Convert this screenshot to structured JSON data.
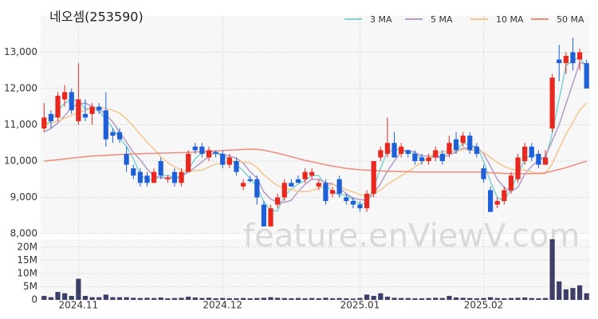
{
  "chart_data": {
    "type": "candlestick",
    "title": "네오셈(253590)",
    "categories": [
      null,
      null,
      null,
      null,
      null,
      "2024.11",
      null,
      null,
      null,
      null,
      null,
      null,
      null,
      null,
      null,
      null,
      null,
      null,
      null,
      null,
      null,
      null,
      null,
      null,
      null,
      null,
      "2024.12",
      null,
      null,
      null,
      null,
      null,
      null,
      null,
      null,
      null,
      null,
      null,
      null,
      null,
      null,
      null,
      null,
      null,
      null,
      null,
      "2025.01",
      null,
      null,
      null,
      null,
      null,
      null,
      null,
      null,
      null,
      null,
      null,
      null,
      null,
      null,
      null,
      null,
      null,
      "2025.02",
      null,
      null,
      null,
      null,
      null,
      null,
      null,
      null,
      null,
      null,
      null,
      null,
      null,
      null,
      null
    ],
    "open": [
      10900,
      11300,
      11200,
      11700,
      11900,
      11100,
      11300,
      11300,
      11500,
      11400,
      10800,
      10800,
      10200,
      9800,
      9700,
      9600,
      9400,
      10000,
      9500,
      9700,
      9400,
      9700,
      10400,
      10400,
      10100,
      10250,
      10200,
      9900,
      10000,
      9300,
      9500,
      9500,
      8800,
      8200,
      8800,
      9000,
      9400,
      9500,
      9500,
      9600,
      9300,
      9400,
      9100,
      9500,
      9000,
      8900,
      8800,
      8700,
      9100,
      10100,
      10200,
      10500,
      10200,
      10300,
      10200,
      10100,
      10000,
      10100,
      10200,
      10200,
      10600,
      10500,
      10700,
      10400,
      9800,
      9200,
      8800,
      8900,
      9200,
      9500,
      10000,
      10400,
      10200,
      9900,
      10900,
      12800,
      12700,
      13000,
      12800,
      12700
    ],
    "high": [
      11600,
      11400,
      11900,
      12100,
      12000,
      12700,
      11700,
      11600,
      11600,
      11900,
      10900,
      10900,
      10400,
      9900,
      9800,
      9700,
      9800,
      10100,
      9600,
      9800,
      9800,
      10300,
      10500,
      10500,
      10400,
      10300,
      10300,
      10200,
      10100,
      9500,
      9600,
      9600,
      8900,
      8800,
      9100,
      9500,
      9500,
      9600,
      9800,
      9800,
      9500,
      9500,
      9300,
      9600,
      9100,
      9000,
      8900,
      9200,
      10000,
      10400,
      11200,
      10800,
      10500,
      10300,
      10300,
      10200,
      10200,
      10400,
      10300,
      10700,
      10800,
      10800,
      10800,
      10500,
      9900,
      9300,
      9000,
      9300,
      9700,
      10200,
      10500,
      10500,
      10300,
      10300,
      12400,
      13200,
      13000,
      13400,
      13100,
      12800
    ],
    "low": [
      10800,
      10900,
      11100,
      11500,
      11300,
      11000,
      11100,
      11000,
      11300,
      10400,
      10500,
      10500,
      9700,
      9500,
      9300,
      9300,
      9400,
      9500,
      9400,
      9300,
      9300,
      9700,
      10200,
      10100,
      10000,
      10100,
      9800,
      9800,
      9600,
      9200,
      9400,
      8800,
      8200,
      8200,
      8700,
      8900,
      9300,
      9400,
      9400,
      9500,
      9200,
      8800,
      9000,
      9000,
      8800,
      8700,
      8600,
      8600,
      9000,
      10000,
      10100,
      10100,
      10100,
      10100,
      9900,
      9900,
      9900,
      10000,
      9900,
      10100,
      10200,
      10400,
      10200,
      10100,
      9400,
      8600,
      8700,
      8800,
      9100,
      9400,
      9900,
      10000,
      9800,
      9900,
      10800,
      12200,
      12400,
      12500,
      12500,
      12000
    ],
    "close": [
      11200,
      11100,
      11800,
      11900,
      11400,
      11700,
      11200,
      11500,
      11400,
      10600,
      10700,
      10600,
      9900,
      9600,
      9400,
      9400,
      9700,
      9600,
      9550,
      9400,
      9700,
      10200,
      10300,
      10200,
      10300,
      10200,
      9900,
      10100,
      9700,
      9400,
      9450,
      9000,
      8200,
      8700,
      9000,
      9400,
      9300,
      9400,
      9700,
      9700,
      9400,
      8900,
      9200,
      9100,
      8900,
      8800,
      8700,
      9100,
      10000,
      10300,
      10500,
      10100,
      10400,
      10200,
      10000,
      10000,
      10100,
      10300,
      10000,
      10500,
      10300,
      10700,
      10300,
      10200,
      9500,
      8600,
      8900,
      9200,
      9600,
      10100,
      10400,
      10100,
      9900,
      10100,
      12300,
      12700,
      12900,
      12700,
      13000,
      12000
    ],
    "up_color": "#e8271e",
    "down_color": "#1f5fd8",
    "ylim": [
      8000,
      14000
    ],
    "yticks": [
      {
        "value": 8000,
        "label": "8,000"
      },
      {
        "value": 9000,
        "label": "9,000"
      },
      {
        "value": 10000,
        "label": "10,000"
      },
      {
        "value": 11000,
        "label": "11,000"
      },
      {
        "value": 12000,
        "label": "12,000"
      },
      {
        "value": 13000,
        "label": "13,000"
      }
    ],
    "grid": true,
    "legend": "top-right",
    "series": [
      {
        "name": "3 MA",
        "color": "#7fd0cf",
        "values": [
          11000,
          11100,
          11367,
          11600,
          11700,
          11667,
          11433,
          11467,
          11367,
          11167,
          10900,
          10633,
          10400,
          10067,
          9633,
          9467,
          9500,
          9567,
          9617,
          9517,
          9550,
          9767,
          10067,
          10233,
          10267,
          10233,
          10133,
          10067,
          9900,
          9733,
          9517,
          9283,
          8883,
          8633,
          8633,
          9033,
          9233,
          9367,
          9467,
          9600,
          9600,
          9333,
          9167,
          9067,
          9067,
          8933,
          8800,
          8867,
          9267,
          9800,
          10267,
          10300,
          10333,
          10233,
          10200,
          10067,
          10033,
          10133,
          10133,
          10267,
          10267,
          10500,
          10433,
          10400,
          10000,
          9433,
          9000,
          8900,
          9233,
          9633,
          10033,
          10200,
          10133,
          10033,
          10767,
          11700,
          12633,
          12767,
          12867,
          12567
        ]
      },
      {
        "name": "5 MA",
        "color": "#b39bc8",
        "values": [
          10800,
          10900,
          11050,
          11250,
          11480,
          11580,
          11600,
          11500,
          11440,
          11280,
          11080,
          10800,
          10520,
          10240,
          10040,
          9780,
          9600,
          9540,
          9530,
          9530,
          9590,
          9690,
          9830,
          9980,
          10140,
          10240,
          10180,
          10140,
          10080,
          9940,
          9710,
          9530,
          9150,
          8950,
          8870,
          8860,
          8920,
          9160,
          9360,
          9500,
          9500,
          9400,
          9380,
          9260,
          9100,
          8980,
          8940,
          8920,
          9100,
          9380,
          9720,
          10000,
          10260,
          10300,
          10240,
          10140,
          10140,
          10120,
          10080,
          10180,
          10240,
          10360,
          10360,
          10400,
          10200,
          9860,
          9500,
          9280,
          9160,
          9280,
          9640,
          9860,
          10020,
          10120,
          10560,
          11000,
          11580,
          12140,
          12720,
          12660
        ]
      },
      {
        "name": "10 MA",
        "color": "#f2c68c",
        "values": [
          11000,
          11050,
          11100,
          11180,
          11260,
          11350,
          11400,
          11450,
          11480,
          11450,
          11400,
          11320,
          11160,
          10960,
          10740,
          10520,
          10330,
          10120,
          9960,
          9840,
          9750,
          9710,
          9740,
          9750,
          9840,
          9920,
          9940,
          9990,
          10000,
          9970,
          9950,
          9830,
          9620,
          9460,
          9330,
          9250,
          9220,
          9160,
          9160,
          9190,
          9260,
          9310,
          9360,
          9310,
          9210,
          9150,
          9070,
          9050,
          9110,
          9200,
          9360,
          9480,
          9600,
          9710,
          9840,
          9960,
          10100,
          10220,
          10260,
          10280,
          10260,
          10320,
          10310,
          10290,
          10240,
          10100,
          9960,
          9850,
          9780,
          9750,
          9760,
          9700,
          9660,
          9650,
          9930,
          10340,
          10740,
          11070,
          11410,
          11600
        ]
      },
      {
        "name": "50 MA",
        "color": "#ef8b78",
        "values": [
          10000,
          10020,
          10040,
          10060,
          10080,
          10100,
          10120,
          10140,
          10150,
          10160,
          10170,
          10180,
          10190,
          10200,
          10200,
          10210,
          10210,
          10220,
          10220,
          10230,
          10230,
          10240,
          10250,
          10260,
          10270,
          10280,
          10290,
          10300,
          10310,
          10320,
          10330,
          10320,
          10300,
          10260,
          10220,
          10170,
          10120,
          10070,
          10020,
          9980,
          9940,
          9900,
          9860,
          9830,
          9800,
          9780,
          9760,
          9750,
          9740,
          9730,
          9720,
          9720,
          9710,
          9710,
          9700,
          9700,
          9700,
          9700,
          9700,
          9700,
          9700,
          9700,
          9700,
          9700,
          9690,
          9680,
          9670,
          9660,
          9650,
          9650,
          9650,
          9650,
          9660,
          9680,
          9720,
          9770,
          9820,
          9880,
          9940,
          10000
        ]
      }
    ],
    "volume": {
      "color": "#3c3e68",
      "ylim": [
        0,
        23000000
      ],
      "yticks": [
        0,
        {
          "value": 5000000,
          "label": "5M"
        },
        {
          "value": 10000000,
          "label": "10M"
        },
        {
          "value": 15000000,
          "label": "15M"
        },
        {
          "value": 20000000,
          "label": "20M"
        }
      ],
      "values": [
        1500000,
        1000000,
        3000000,
        2500000,
        1500000,
        8000000,
        1500000,
        1000000,
        1000000,
        2000000,
        1000000,
        1000000,
        1000000,
        800000,
        700000,
        800000,
        700000,
        900000,
        600000,
        700000,
        800000,
        1200000,
        900000,
        700000,
        800000,
        600000,
        700000,
        600000,
        600000,
        700000,
        600000,
        700000,
        800000,
        1000000,
        800000,
        700000,
        600000,
        700000,
        600000,
        700000,
        600000,
        800000,
        600000,
        700000,
        600000,
        500000,
        700000,
        2000000,
        1500000,
        2500000,
        1200000,
        800000,
        700000,
        700000,
        600000,
        600000,
        700000,
        800000,
        700000,
        1500000,
        900000,
        800000,
        700000,
        600000,
        700000,
        1000000,
        700000,
        600000,
        700000,
        800000,
        900000,
        700000,
        600000,
        700000,
        23000000,
        7000000,
        4000000,
        4500000,
        5500000,
        2500000
      ]
    },
    "watermark": "feature.enViewV.com"
  }
}
